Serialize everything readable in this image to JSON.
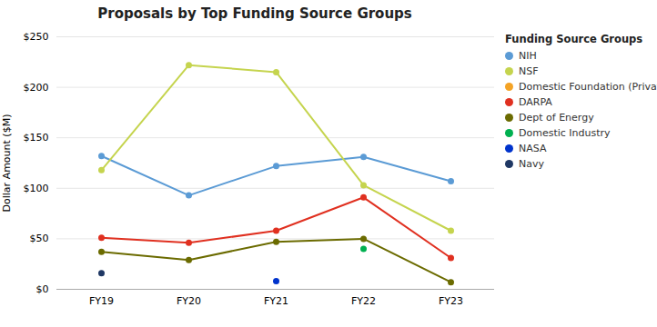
{
  "chart_data": {
    "type": "line",
    "title": "Proposals by Top Funding Source Groups",
    "ylabel": "Dollar Amount ($M)",
    "categories": [
      "FY19",
      "FY20",
      "FY21",
      "FY22",
      "FY23"
    ],
    "series": [
      {
        "name": "NIH",
        "color": "#5b9bd5",
        "values": [
          132,
          93,
          122,
          131,
          107
        ]
      },
      {
        "name": "NSF",
        "color": "#c5d44e",
        "values": [
          118,
          222,
          215,
          103,
          58
        ]
      },
      {
        "name": "Domestic Foundation (Private)",
        "color": "#f4a325",
        "values": [
          null,
          null,
          null,
          null,
          null
        ]
      },
      {
        "name": "DARPA",
        "color": "#e03020",
        "values": [
          51,
          46,
          58,
          91,
          31
        ]
      },
      {
        "name": "Dept of Energy",
        "color": "#6b6b00",
        "values": [
          37,
          29,
          47,
          50,
          7
        ]
      },
      {
        "name": "Domestic Industry",
        "color": "#00b050",
        "values": [
          null,
          null,
          null,
          40,
          null
        ]
      },
      {
        "name": "NASA",
        "color": "#0033cc",
        "values": [
          null,
          null,
          8,
          null,
          null
        ]
      },
      {
        "name": "Navy",
        "color": "#1f3864",
        "values": [
          16,
          null,
          null,
          null,
          null
        ]
      }
    ],
    "ylim": [
      0,
      250
    ],
    "yticks": [
      {
        "value": 0,
        "label": "$0"
      },
      {
        "value": 50,
        "label": "$50"
      },
      {
        "value": 100,
        "label": "$100"
      },
      {
        "value": 150,
        "label": "$150"
      },
      {
        "value": 200,
        "label": "$200"
      },
      {
        "value": 250,
        "label": "$250"
      }
    ],
    "legend_title": "Funding Source Groups",
    "legend": "right",
    "marker": "circle",
    "grid": true
  }
}
